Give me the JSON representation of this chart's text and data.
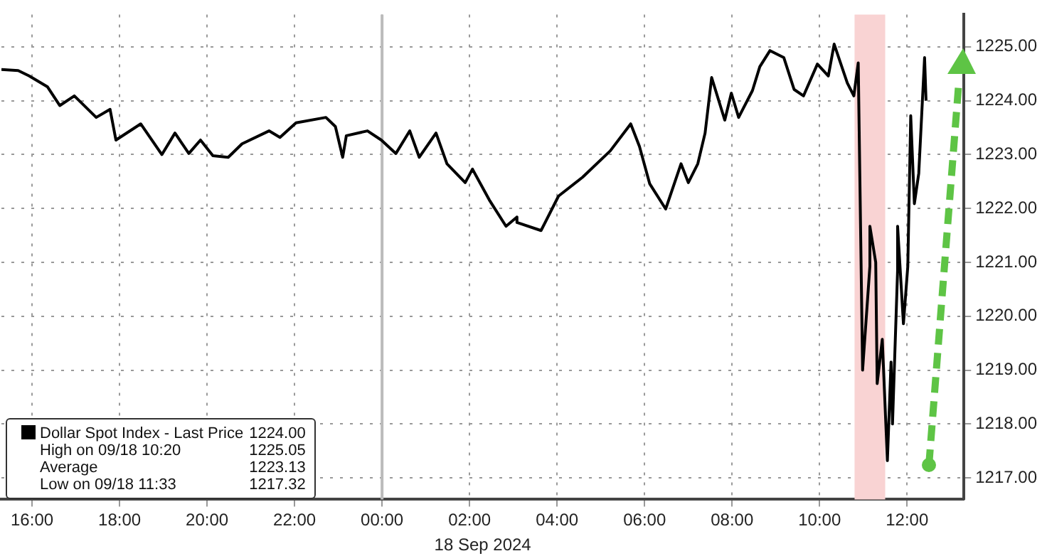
{
  "chart_data": {
    "type": "line",
    "x": [
      "2024-09-17T15:18",
      "2024-09-17T15:41",
      "2024-09-17T15:56",
      "2024-09-17T16:21",
      "2024-09-17T16:38",
      "2024-09-17T16:58",
      "2024-09-17T17:28",
      "2024-09-17T17:47",
      "2024-09-17T17:55",
      "2024-09-17T18:29",
      "2024-09-17T18:58",
      "2024-09-17T19:16",
      "2024-09-17T19:35",
      "2024-09-17T19:51",
      "2024-09-17T20:08",
      "2024-09-17T20:29",
      "2024-09-17T20:48",
      "2024-09-17T21:25",
      "2024-09-17T21:40",
      "2024-09-17T22:02",
      "2024-09-17T22:43",
      "2024-09-17T22:56",
      "2024-09-17T23:06",
      "2024-09-17T23:11",
      "2024-09-17T23:40",
      "2024-09-17T23:59",
      "2024-09-18T00:19",
      "2024-09-18T00:38",
      "2024-09-18T00:51",
      "2024-09-18T01:14",
      "2024-09-18T01:29",
      "2024-09-18T01:54",
      "2024-09-18T02:04",
      "2024-09-18T02:27",
      "2024-09-18T02:50",
      "2024-09-18T03:05",
      "2024-09-18T03:05",
      "2024-09-18T03:38",
      "2024-09-18T04:02",
      "2024-09-18T04:35",
      "2024-09-18T05:13",
      "2024-09-18T05:41",
      "2024-09-18T05:53",
      "2024-09-18T06:07",
      "2024-09-18T06:29",
      "2024-09-18T06:50",
      "2024-09-18T07:00",
      "2024-09-18T07:13",
      "2024-09-18T07:23",
      "2024-09-18T07:32",
      "2024-09-18T07:50",
      "2024-09-18T07:59",
      "2024-09-18T08:09",
      "2024-09-18T08:28",
      "2024-09-18T08:38",
      "2024-09-18T08:52",
      "2024-09-18T09:11",
      "2024-09-18T09:25",
      "2024-09-18T09:38",
      "2024-09-18T09:57",
      "2024-09-18T10:12",
      "2024-09-18T10:20",
      "2024-09-18T10:38",
      "2024-09-18T10:47",
      "2024-09-18T10:53",
      "2024-09-18T10:59",
      "2024-09-18T11:09",
      "2024-09-18T11:09",
      "2024-09-18T11:17",
      "2024-09-18T11:19",
      "2024-09-18T11:26",
      "2024-09-18T11:33",
      "2024-09-18T11:38",
      "2024-09-18T11:40",
      "2024-09-18T11:47",
      "2024-09-18T11:47",
      "2024-09-18T11:55",
      "2024-09-18T12:01",
      "2024-09-18T12:05",
      "2024-09-18T12:10",
      "2024-09-18T12:16",
      "2024-09-18T12:24",
      "2024-09-18T12:26"
    ],
    "series": [
      {
        "name": "Dollar Spot Index - Last Price",
        "color": "#000000",
        "values": [
          1224.58,
          1224.56,
          1224.46,
          1224.26,
          1223.91,
          1224.09,
          1223.69,
          1223.84,
          1223.27,
          1223.57,
          1223.0,
          1223.4,
          1223.02,
          1223.27,
          1222.98,
          1222.95,
          1223.2,
          1223.44,
          1223.32,
          1223.59,
          1223.69,
          1223.52,
          1222.95,
          1223.35,
          1223.44,
          1223.27,
          1223.02,
          1223.44,
          1222.95,
          1223.4,
          1222.83,
          1222.48,
          1222.73,
          1222.16,
          1221.67,
          1221.84,
          1221.74,
          1221.59,
          1222.23,
          1222.58,
          1223.07,
          1223.57,
          1223.15,
          1222.46,
          1221.99,
          1222.83,
          1222.48,
          1222.83,
          1223.4,
          1224.43,
          1223.64,
          1224.14,
          1223.69,
          1224.19,
          1224.63,
          1224.93,
          1224.8,
          1224.21,
          1224.09,
          1224.68,
          1224.46,
          1225.05,
          1224.33,
          1224.09,
          1224.7,
          1219.0,
          1220.93,
          1221.67,
          1221.0,
          1218.75,
          1219.57,
          1217.32,
          1219.15,
          1218.0,
          1220.85,
          1221.67,
          1219.86,
          1220.93,
          1223.72,
          1222.09,
          1222.65,
          1224.8,
          1224.0
        ]
      }
    ],
    "xlabel": "18 Sep 2024",
    "xlim": [
      "2024-09-17T15:18",
      "2024-09-18T13:18"
    ],
    "xticks": [
      {
        "value": "2024-09-17T16:00",
        "label": "16:00"
      },
      {
        "value": "2024-09-17T18:00",
        "label": "18:00"
      },
      {
        "value": "2024-09-17T20:00",
        "label": "20:00"
      },
      {
        "value": "2024-09-17T22:00",
        "label": "22:00"
      },
      {
        "value": "2024-09-18T00:00",
        "label": "00:00"
      },
      {
        "value": "2024-09-18T02:00",
        "label": "02:00"
      },
      {
        "value": "2024-09-18T04:00",
        "label": "04:00"
      },
      {
        "value": "2024-09-18T06:00",
        "label": "06:00"
      },
      {
        "value": "2024-09-18T08:00",
        "label": "08:00"
      },
      {
        "value": "2024-09-18T10:00",
        "label": "10:00"
      },
      {
        "value": "2024-09-18T12:00",
        "label": "12:00"
      }
    ],
    "ylim": [
      1216.6,
      1225.6
    ],
    "yticks": [
      {
        "value": 1217,
        "label": "1217.00"
      },
      {
        "value": 1218,
        "label": "1218.00"
      },
      {
        "value": 1219,
        "label": "1219.00"
      },
      {
        "value": 1220,
        "label": "1220.00"
      },
      {
        "value": 1221,
        "label": "1221.00"
      },
      {
        "value": 1222,
        "label": "1222.00"
      },
      {
        "value": 1223,
        "label": "1223.00"
      },
      {
        "value": 1224,
        "label": "1224.00"
      },
      {
        "value": 1225,
        "label": "1225.00"
      }
    ],
    "ref_lines": [
      {
        "axis": "x",
        "value": "2024-09-18T00:00",
        "color": "#bbbbbb"
      }
    ],
    "bands": [
      {
        "axis": "x",
        "from": "2024-09-18T10:48",
        "to": "2024-09-18T11:30",
        "color": "#f9d3d3"
      }
    ],
    "annotations": [
      "1224.00",
      "High on 09/18 10:20",
      "1225.05",
      "Average",
      "1223.13",
      "Low on 09/18 11:33",
      "1217.32"
    ],
    "grid": true,
    "legend": "bottom left",
    "marker": "none",
    "line_style": "solid"
  }
}
